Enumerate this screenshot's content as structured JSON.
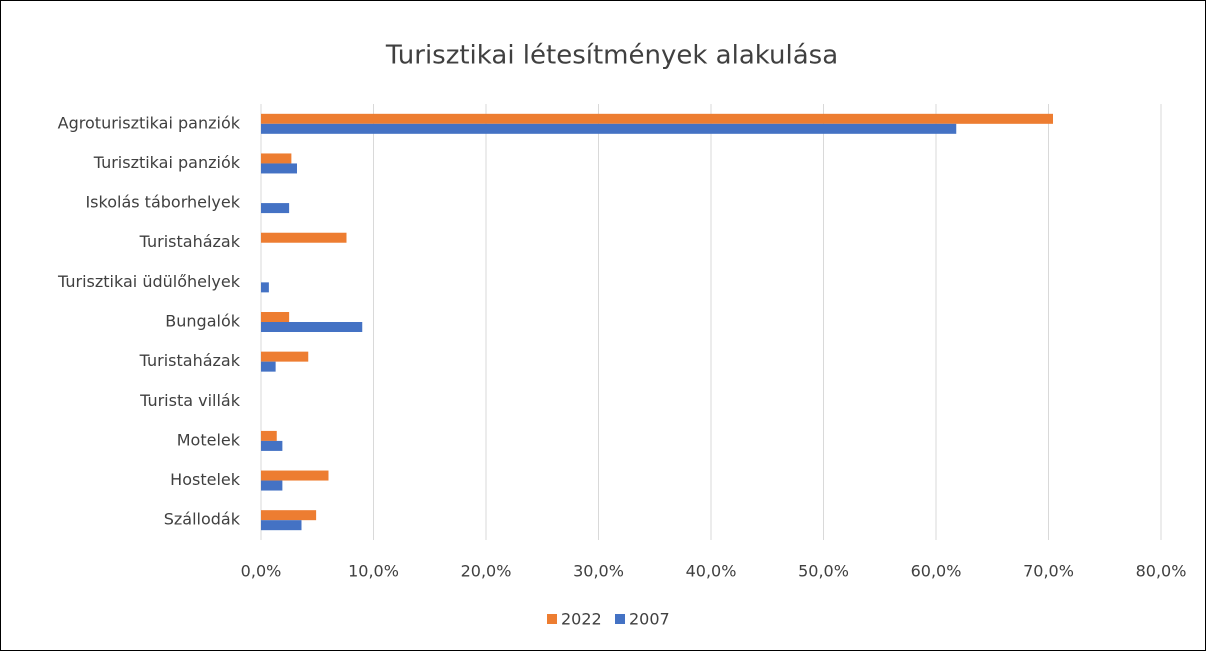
{
  "chart_data": {
    "type": "hbar",
    "title": "Turisztikai létesítmények alakulása",
    "categories": [
      "Agroturisztikai panziók",
      "Turisztikai panziók",
      "Iskolás táborhelyek",
      "Turistaházak",
      "Turisztikai üdülőhelyek",
      "Bungalók",
      "Turistaházak",
      "Turista villák",
      "Motelek",
      "Hostelek",
      "Szállodák"
    ],
    "series": [
      {
        "name": "2022",
        "color": "#ed7d31",
        "values": [
          70.4,
          2.7,
          0,
          7.6,
          0,
          2.5,
          4.2,
          0,
          1.4,
          6.0,
          4.9
        ]
      },
      {
        "name": "2007",
        "color": "#4472c4",
        "values": [
          61.8,
          3.2,
          2.5,
          0,
          0.7,
          9.0,
          1.3,
          0,
          1.9,
          1.9,
          3.6
        ]
      }
    ],
    "xlim": [
      0,
      80
    ],
    "xticks": [
      {
        "value": 0,
        "label": "0,0%"
      },
      {
        "value": 10,
        "label": "10,0%"
      },
      {
        "value": 20,
        "label": "20,0%"
      },
      {
        "value": 30,
        "label": "30,0%"
      },
      {
        "value": 40,
        "label": "40,0%"
      },
      {
        "value": 50,
        "label": "50,0%"
      },
      {
        "value": 60,
        "label": "60,0%"
      },
      {
        "value": 70,
        "label": "70,0%"
      },
      {
        "value": 80,
        "label": "80,0%"
      }
    ],
    "grid": true,
    "legend": "bottom"
  }
}
